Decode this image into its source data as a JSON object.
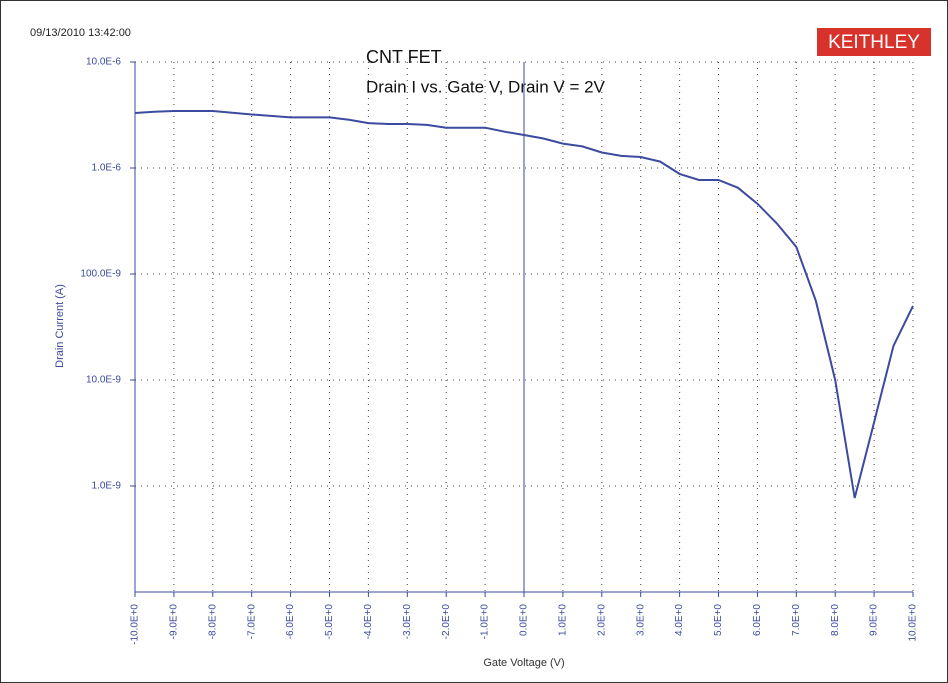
{
  "header": {
    "timestamp": "09/13/2010 13:42:00",
    "brand": "KEITHLEY"
  },
  "chart_data": {
    "type": "line",
    "title": "CNT FET",
    "subtitle": "Drain I vs. Gate V, Drain V = 2V",
    "x_label": "Gate Voltage (V)",
    "y_label": "Drain Current (A)",
    "yscale": "log",
    "grid": true,
    "xlim": [
      -10,
      10
    ],
    "ylim": [
      1e-10,
      1e-05
    ],
    "xticks": [
      {
        "value": -10,
        "label": "-10.0E+0"
      },
      {
        "value": -9,
        "label": "-9.0E+0"
      },
      {
        "value": -8,
        "label": "-8.0E+0"
      },
      {
        "value": -7,
        "label": "-7.0E+0"
      },
      {
        "value": -6,
        "label": "-6.0E+0"
      },
      {
        "value": -5,
        "label": "-5.0E+0"
      },
      {
        "value": -4,
        "label": "-4.0E+0"
      },
      {
        "value": -3,
        "label": "-3.0E+0"
      },
      {
        "value": -2,
        "label": "-2.0E+0"
      },
      {
        "value": -1,
        "label": "-1.0E+0"
      },
      {
        "value": 0,
        "label": "0.0E+0"
      },
      {
        "value": 1,
        "label": "1.0E+0"
      },
      {
        "value": 2,
        "label": "2.0E+0"
      },
      {
        "value": 3,
        "label": "3.0E+0"
      },
      {
        "value": 4,
        "label": "4.0E+0"
      },
      {
        "value": 5,
        "label": "5.0E+0"
      },
      {
        "value": 6,
        "label": "6.0E+0"
      },
      {
        "value": 7,
        "label": "7.0E+0"
      },
      {
        "value": 8,
        "label": "8.0E+0"
      },
      {
        "value": 9,
        "label": "9.0E+0"
      },
      {
        "value": 10,
        "label": "10.0E+0"
      }
    ],
    "yticks": [
      {
        "value": 1e-05,
        "label": "10.0E-6"
      },
      {
        "value": 1e-06,
        "label": "1.0E-6"
      },
      {
        "value": 1e-07,
        "label": "100.0E-9"
      },
      {
        "value": 1e-08,
        "label": "10.0E-9"
      },
      {
        "value": 1e-09,
        "label": "1.0E-9"
      }
    ],
    "x": [
      -10,
      -9.5,
      -9,
      -8,
      -7,
      -6,
      -5,
      -4.5,
      -4,
      -3.5,
      -3,
      -2.5,
      -2,
      -1.5,
      -1,
      -0.5,
      0,
      0.5,
      1,
      1.5,
      2,
      2.5,
      3,
      3.5,
      4,
      4.5,
      5,
      5.5,
      6,
      6.5,
      7,
      7.5,
      8,
      8.5,
      9,
      9.5,
      10
    ],
    "series": [
      {
        "name": "Drain Current",
        "color": "#3c4aa0",
        "values": [
          3.3e-06,
          3.4e-06,
          3.45e-06,
          3.45e-06,
          3.2e-06,
          3e-06,
          3e-06,
          2.85e-06,
          2.65e-06,
          2.6e-06,
          2.6e-06,
          2.55e-06,
          2.4e-06,
          2.4e-06,
          2.4e-06,
          2.2e-06,
          2.05e-06,
          1.9e-06,
          1.7e-06,
          1.6e-06,
          1.4e-06,
          1.3e-06,
          1.27e-06,
          1.15e-06,
          8.8e-07,
          7.7e-07,
          7.7e-07,
          6.5e-07,
          4.6e-07,
          3e-07,
          1.8e-07,
          5.6e-08,
          1e-08,
          7.7e-10,
          4e-09,
          2.1e-08,
          5e-08
        ]
      }
    ]
  }
}
